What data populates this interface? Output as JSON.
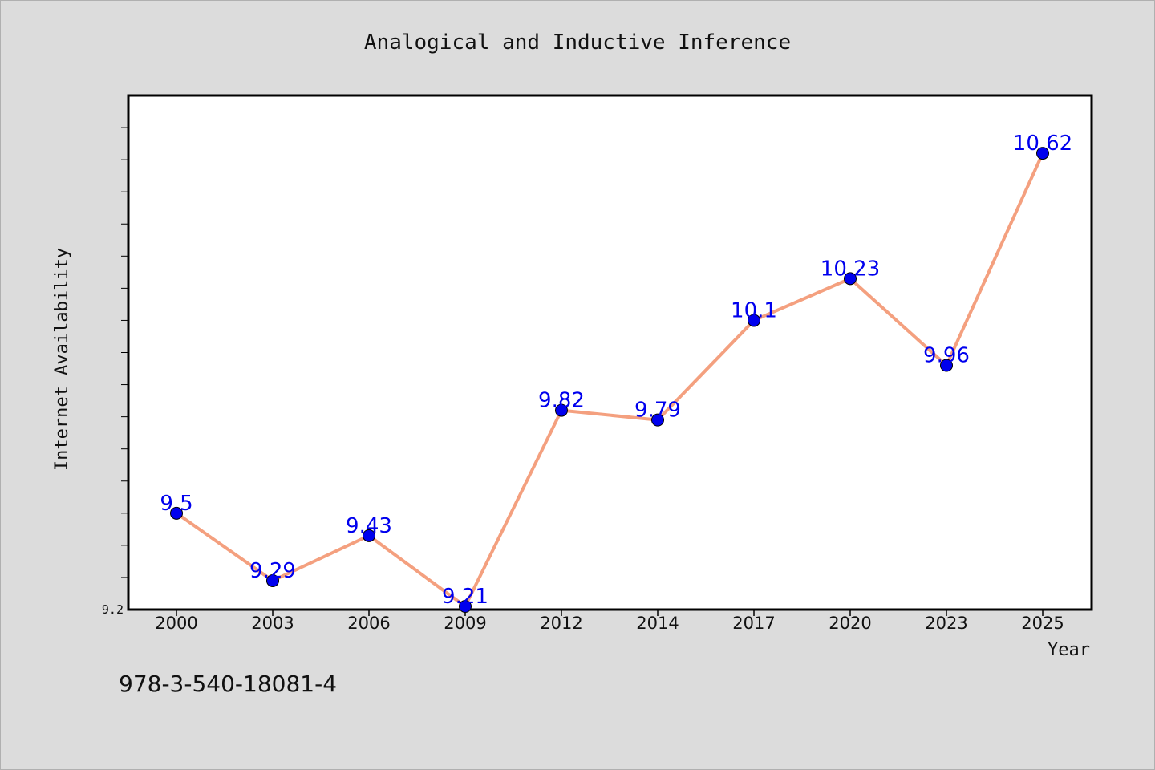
{
  "chart_data": {
    "type": "line",
    "title": "Analogical and Inductive Inference",
    "xlabel": "Year",
    "ylabel": "Internet Availability",
    "categories": [
      "2000",
      "2003",
      "2006",
      "2009",
      "2012",
      "2014",
      "2017",
      "2020",
      "2023",
      "2025"
    ],
    "series": [
      {
        "values": [
          9.5,
          9.29,
          9.43,
          9.21,
          9.82,
          9.79,
          10.1,
          10.23,
          9.96,
          10.62
        ],
        "labels": [
          "9.5",
          "9.29",
          "9.43",
          "9.21",
          "9.82",
          "9.79",
          "10.1",
          "10.23",
          "9.96",
          "10.62"
        ]
      }
    ],
    "ylim": [
      9.2,
      10.8
    ],
    "y_tick_labels": [
      "9.2"
    ],
    "grid": false,
    "line_color": "#f4a07f",
    "marker_color": "#0000ee",
    "label_color": "#0000ee"
  },
  "footer": {
    "isbn": "978-3-540-18081-4"
  }
}
